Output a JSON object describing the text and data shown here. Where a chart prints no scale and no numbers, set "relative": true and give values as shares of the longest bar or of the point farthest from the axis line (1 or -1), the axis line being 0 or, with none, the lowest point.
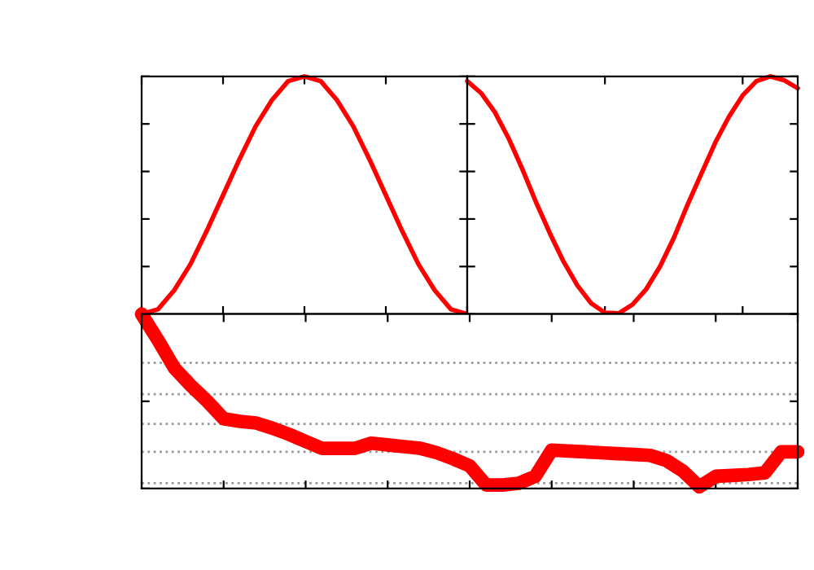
{
  "chart_data": [
    {
      "type": "line",
      "relative": true,
      "tick_labels": false,
      "categories": [
        null,
        null,
        null,
        null,
        null,
        null,
        null,
        null,
        null,
        null,
        null,
        null,
        null,
        null,
        null,
        null,
        null,
        null,
        null,
        null,
        null
      ],
      "series": [
        {
          "color": "#ff0000",
          "values": [
            0,
            0.02,
            0.1,
            0.21,
            0.35,
            0.5,
            0.65,
            0.79,
            0.9,
            0.98,
            1,
            0.98,
            0.9,
            0.79,
            0.65,
            0.5,
            0.35,
            0.21,
            0.1,
            0.02,
            0
          ]
        }
      ]
    },
    {
      "type": "line",
      "relative": true,
      "tick_labels": false,
      "categories": [
        null,
        null,
        null,
        null,
        null,
        null,
        null,
        null,
        null,
        null,
        null,
        null,
        null,
        null,
        null,
        null,
        null,
        null,
        null,
        null,
        null,
        null,
        null,
        null,
        null
      ],
      "series": [
        {
          "color": "#ff0000",
          "values": [
            0.98,
            0.93,
            0.85,
            0.74,
            0.61,
            0.47,
            0.34,
            0.22,
            0.12,
            0.045,
            0.006,
            0.003,
            0.04,
            0.105,
            0.2,
            0.32,
            0.46,
            0.59,
            0.72,
            0.83,
            0.92,
            0.98,
            1,
            0.984,
            0.95
          ]
        }
      ]
    },
    {
      "type": "line",
      "relative": true,
      "tick_labels": false,
      "ref_lines": [
        {
          "axis": "y",
          "value": 0.72,
          "color": "#999999",
          "line_style": "dotted"
        },
        {
          "axis": "y",
          "value": 0.54,
          "color": "#999999",
          "line_style": "dotted"
        },
        {
          "axis": "y",
          "value": 0.37,
          "color": "#999999",
          "line_style": "dotted"
        },
        {
          "axis": "y",
          "value": 0.21,
          "color": "#999999",
          "line_style": "dotted"
        },
        {
          "axis": "y",
          "value": 0.03,
          "color": "#999999",
          "line_style": "dotted"
        }
      ],
      "categories": [
        null,
        null,
        null,
        null,
        null,
        null,
        null,
        null,
        null,
        null,
        null,
        null,
        null,
        null,
        null,
        null,
        null,
        null,
        null,
        null,
        null,
        null,
        null,
        null,
        null,
        null,
        null,
        null,
        null,
        null,
        null,
        null,
        null,
        null,
        null,
        null,
        null,
        null,
        null,
        null,
        null
      ],
      "series": [
        {
          "color": "#ff0000",
          "values": [
            1.0,
            0.85,
            0.69,
            0.59,
            0.5,
            0.4,
            0.385,
            0.375,
            0.345,
            0.31,
            0.27,
            0.23,
            0.23,
            0.23,
            0.26,
            0.25,
            0.24,
            0.23,
            0.205,
            0.17,
            0.13,
            0.02,
            0.02,
            0.03,
            0.07,
            0.22,
            0.215,
            0.21,
            0.205,
            0.2,
            0.195,
            0.19,
            0.16,
            0.1,
            0.01,
            0.07,
            0.075,
            0.08,
            0.09,
            0.21,
            0.21
          ]
        }
      ]
    }
  ]
}
